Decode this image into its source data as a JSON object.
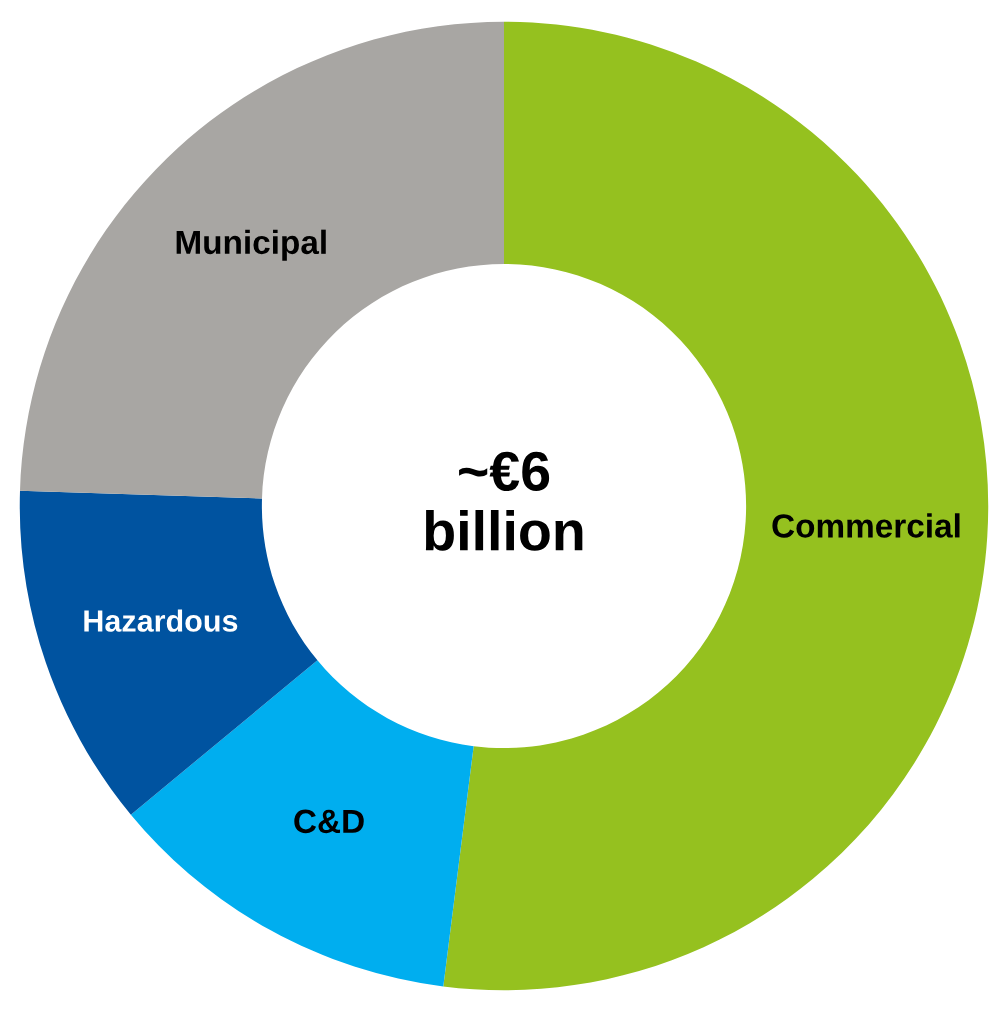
{
  "chart_data": {
    "type": "donut",
    "categories": [
      "Commercial",
      "C&D",
      "Hazardous",
      "Municipal"
    ],
    "values": [
      52,
      12,
      11.5,
      24.5
    ],
    "colors": [
      "#95c11f",
      "#00aeef",
      "#0053a0",
      "#a8a6a3"
    ],
    "annotations": [
      "~€6\nbillion"
    ]
  }
}
